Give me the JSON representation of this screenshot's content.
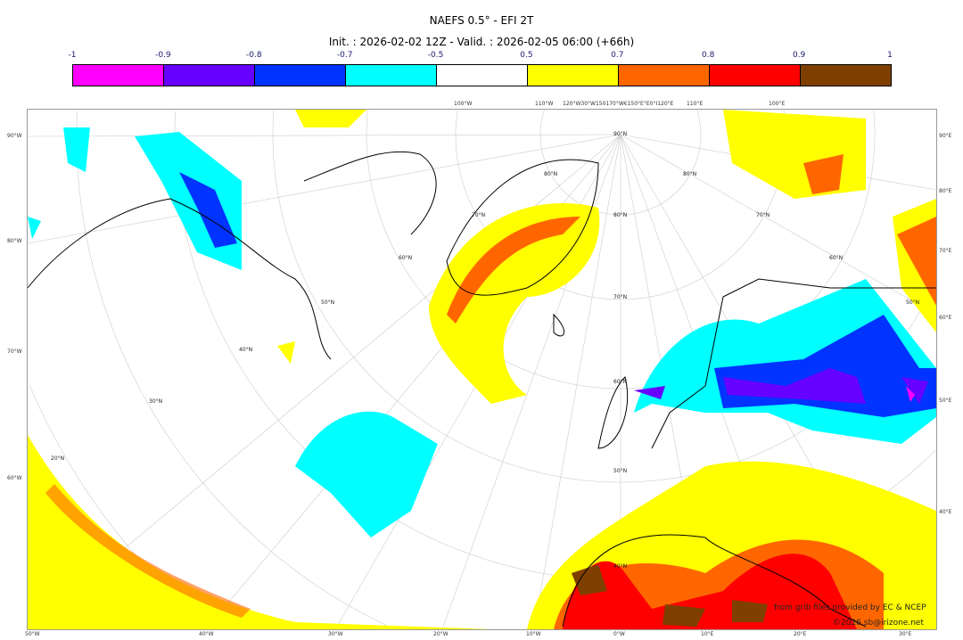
{
  "title": "NAEFS 0.5° - EFI 2T",
  "subtitle": "Init. : 2026-02-02 12Z - Valid. : 2026-02-05 06:00 (+66h)",
  "colorbar": {
    "labels": [
      "-1",
      "-0.9",
      "-0.8",
      "-0.7",
      "-0.5",
      "0.5",
      "0.7",
      "0.8",
      "0.9",
      "1"
    ],
    "colors": [
      "#ff00ff",
      "#6600ff",
      "#0033ff",
      "#00ffff",
      "#ffffff",
      "#ffff00",
      "#ff6600",
      "#ff0000",
      "#7f3f00"
    ]
  },
  "axes": {
    "top": [
      "100°W",
      "110°W",
      "120°W30°W150170°W€150°E°E0°I120°E",
      "110°E",
      "100°E"
    ],
    "left": [
      "90°W",
      "80°W",
      "70°W",
      "60°W"
    ],
    "right": [
      "90°E",
      "80°E",
      "70°E",
      "60°E",
      "50°E",
      "40°E"
    ],
    "bottom": [
      "50°W",
      "40°W",
      "30°W",
      "20°W",
      "10°W",
      "0°W",
      "10°E",
      "20°E",
      "30°E"
    ]
  },
  "grid_labels": [
    "90°N",
    "80°N",
    "80°N",
    "80°N",
    "70°N",
    "70°N",
    "70°N",
    "60°N",
    "60°N",
    "60°N",
    "50°N",
    "50°N",
    "50°N",
    "40°N",
    "40°N",
    "30°N",
    "20°N"
  ],
  "credits": {
    "source": "from grib files provided by EC & NCEP",
    "copyright": "©2026 sb@irizone.net"
  }
}
